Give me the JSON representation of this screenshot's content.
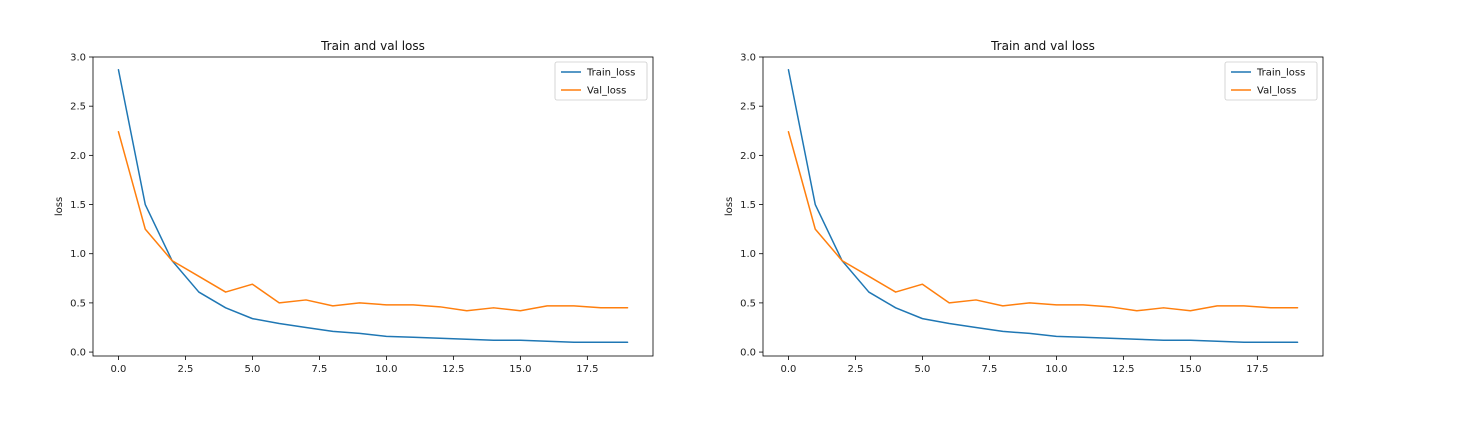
{
  "colors": {
    "train": "#1f77b4",
    "val": "#ff7f0e"
  },
  "chart_data": [
    {
      "type": "line",
      "title": "Train and val loss",
      "xlabel": "",
      "ylabel": "loss",
      "xlim": [
        -0.95,
        19.95
      ],
      "ylim": [
        -0.04,
        3.0
      ],
      "xticks": [
        0.0,
        2.5,
        5.0,
        7.5,
        10.0,
        12.5,
        15.0,
        17.5
      ],
      "xtick_labels": [
        "0.0",
        "2.5",
        "5.0",
        "7.5",
        "10.0",
        "12.5",
        "15.0",
        "17.5"
      ],
      "yticks": [
        0.0,
        0.5,
        1.0,
        1.5,
        2.0,
        2.5,
        3.0
      ],
      "ytick_labels": [
        "0.0",
        "0.5",
        "1.0",
        "1.5",
        "2.0",
        "2.5",
        "3.0"
      ],
      "legend": "top-right",
      "grid": false,
      "x": [
        0,
        1,
        2,
        3,
        4,
        5,
        6,
        7,
        8,
        9,
        10,
        11,
        12,
        13,
        14,
        15,
        16,
        17,
        18,
        19
      ],
      "series": [
        {
          "name": "Train_loss",
          "color": "#1f77b4",
          "values": [
            2.87,
            1.5,
            0.93,
            0.61,
            0.45,
            0.34,
            0.29,
            0.25,
            0.21,
            0.19,
            0.16,
            0.15,
            0.14,
            0.13,
            0.12,
            0.12,
            0.11,
            0.1,
            0.1,
            0.1
          ]
        },
        {
          "name": "Val_loss",
          "color": "#ff7f0e",
          "values": [
            2.24,
            1.25,
            0.93,
            0.77,
            0.61,
            0.69,
            0.5,
            0.53,
            0.47,
            0.5,
            0.48,
            0.48,
            0.46,
            0.42,
            0.45,
            0.42,
            0.47,
            0.47,
            0.45,
            0.45
          ]
        }
      ]
    },
    {
      "type": "line",
      "title": "Train and val loss",
      "xlabel": "",
      "ylabel": "loss",
      "xlim": [
        -0.95,
        19.95
      ],
      "ylim": [
        -0.04,
        3.0
      ],
      "xticks": [
        0.0,
        2.5,
        5.0,
        7.5,
        10.0,
        12.5,
        15.0,
        17.5
      ],
      "xtick_labels": [
        "0.0",
        "2.5",
        "5.0",
        "7.5",
        "10.0",
        "12.5",
        "15.0",
        "17.5"
      ],
      "yticks": [
        0.0,
        0.5,
        1.0,
        1.5,
        2.0,
        2.5,
        3.0
      ],
      "ytick_labels": [
        "0.0",
        "0.5",
        "1.0",
        "1.5",
        "2.0",
        "2.5",
        "3.0"
      ],
      "legend": "top-right",
      "grid": false,
      "x": [
        0,
        1,
        2,
        3,
        4,
        5,
        6,
        7,
        8,
        9,
        10,
        11,
        12,
        13,
        14,
        15,
        16,
        17,
        18,
        19
      ],
      "series": [
        {
          "name": "Train_loss",
          "color": "#1f77b4",
          "values": [
            2.87,
            1.5,
            0.93,
            0.61,
            0.45,
            0.34,
            0.29,
            0.25,
            0.21,
            0.19,
            0.16,
            0.15,
            0.14,
            0.13,
            0.12,
            0.12,
            0.11,
            0.1,
            0.1,
            0.1
          ]
        },
        {
          "name": "Val_loss",
          "color": "#ff7f0e",
          "values": [
            2.24,
            1.25,
            0.93,
            0.77,
            0.61,
            0.69,
            0.5,
            0.53,
            0.47,
            0.5,
            0.48,
            0.48,
            0.46,
            0.42,
            0.45,
            0.42,
            0.47,
            0.47,
            0.45,
            0.45
          ]
        }
      ]
    }
  ]
}
